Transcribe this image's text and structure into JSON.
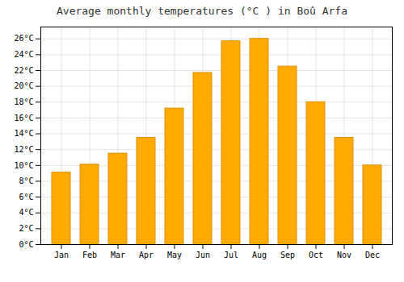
{
  "chart_data": {
    "type": "bar",
    "title": "Average monthly temperatures (°C ) in Boû Arfa",
    "categories": [
      "Jan",
      "Feb",
      "Mar",
      "Apr",
      "May",
      "Jun",
      "Jul",
      "Aug",
      "Sep",
      "Oct",
      "Nov",
      "Dec"
    ],
    "values": [
      9.1,
      10.1,
      11.5,
      13.5,
      17.2,
      21.7,
      25.7,
      26.0,
      22.5,
      18.0,
      13.5,
      10.0
    ],
    "color": "#FFAA00",
    "ylim": [
      0,
      27.5
    ],
    "yticks": [
      {
        "value": 0,
        "label": "0°C"
      },
      {
        "value": 2,
        "label": "2°C"
      },
      {
        "value": 4,
        "label": "4°C"
      },
      {
        "value": 6,
        "label": "6°C"
      },
      {
        "value": 8,
        "label": "8°C"
      },
      {
        "value": 10,
        "label": "10°C"
      },
      {
        "value": 12,
        "label": "12°C"
      },
      {
        "value": 14,
        "label": "14°C"
      },
      {
        "value": 16,
        "label": "16°C"
      },
      {
        "value": 18,
        "label": "18°C"
      },
      {
        "value": 20,
        "label": "20°C"
      },
      {
        "value": 22,
        "label": "22°C"
      },
      {
        "value": 24,
        "label": "24°C"
      },
      {
        "value": 26,
        "label": "26°C"
      }
    ],
    "grid": true
  }
}
